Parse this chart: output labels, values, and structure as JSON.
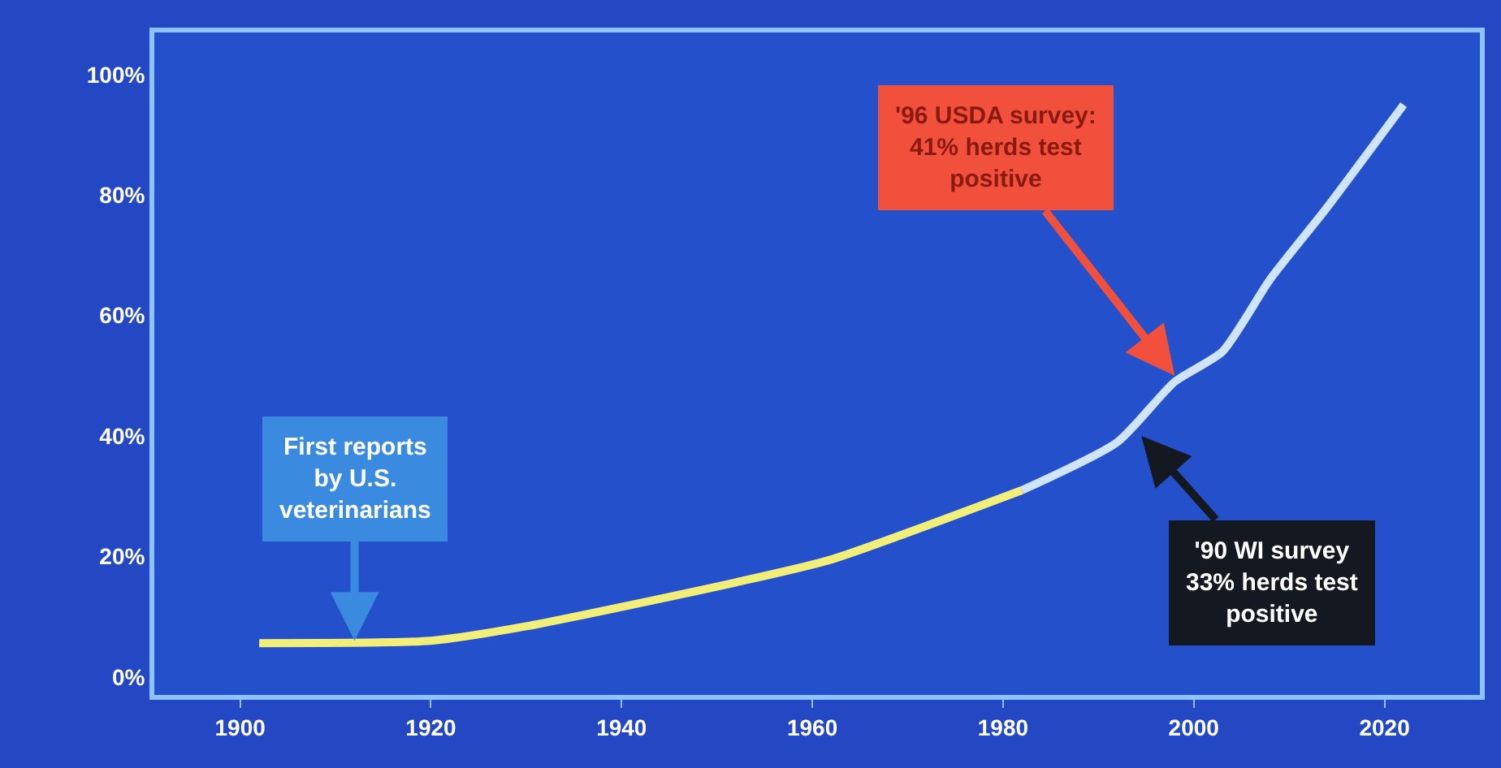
{
  "chart_data": {
    "type": "line",
    "series": [
      {
        "color": "#f2ee7a",
        "x": [
          1902,
          1920,
          1930,
          1952,
          1962,
          1982
        ],
        "values": [
          5.6,
          6,
          8.4,
          15.7,
          19.5,
          31
        ]
      },
      {
        "color": "#cfe4ff",
        "x": [
          1982,
          1992,
          1998,
          2003,
          2008,
          2014,
          2022
        ],
        "values": [
          31,
          39,
          49,
          54,
          66,
          78,
          95
        ]
      }
    ],
    "xlim": [
      1891,
      2030
    ],
    "xticks": [
      1900,
      1920,
      1940,
      1960,
      1980,
      2000,
      2020
    ],
    "ylim": [
      -3,
      107
    ],
    "yticks": [
      {
        "value": 0,
        "label": "0%"
      },
      {
        "value": 20,
        "label": "20%"
      },
      {
        "value": 40,
        "label": "40%"
      },
      {
        "value": 60,
        "label": "60%"
      },
      {
        "value": 80,
        "label": "80%"
      },
      {
        "value": 100,
        "label": "100%"
      }
    ],
    "annotations": [
      {
        "text": "First reports\nby U.S.\nveterinarians",
        "x": 1912,
        "y": 6
      },
      {
        "text": "'96 USDA survey:\n41% herds test\npositive",
        "x": 1998,
        "y": 50
      },
      {
        "text": "'90 WI survey\n33% herds test\npositive",
        "x": 1994.5,
        "y": 40
      }
    ],
    "grid": false,
    "marker": "none",
    "line_style": "solid"
  }
}
